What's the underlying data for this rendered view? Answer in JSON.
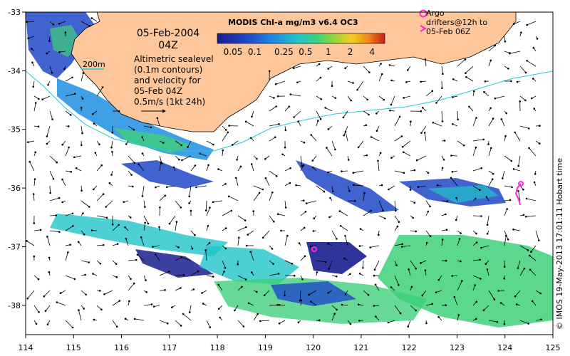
{
  "map": {
    "title_date": "05-Feb-2004",
    "title_time": "04Z",
    "sealevel_text": "Altimetric sealevel (0.1m contours) and velocity for 05-Feb 04Z",
    "scale_text": "0.5m/s (1kt 24h)",
    "contour_label": "200m",
    "credit": "© IMOS 19-May-2013 17:01:11 Hobart time",
    "x_axis_ticks": [
      "114",
      "115",
      "116",
      "117",
      "118",
      "119",
      "120",
      "121",
      "122",
      "123",
      "124",
      "125"
    ],
    "y_axis_ticks": [
      "-33",
      "-34",
      "-35",
      "-36",
      "-37",
      "-38"
    ],
    "lon_range": [
      114,
      125
    ],
    "lat_range": [
      -38.5,
      -33
    ]
  },
  "colorbar": {
    "title": "MODIS Chl-a mg/m3 v6.4 OC3",
    "ticks": [
      "0.05",
      "0.1",
      "0.25",
      "0.5",
      "1",
      "2",
      "4"
    ],
    "colors": [
      "#1a1e8f",
      "#1f48c8",
      "#1f8fe0",
      "#20c4c8",
      "#3ed07a",
      "#9ad43a",
      "#f0d020",
      "#f08a18",
      "#c81e14"
    ]
  },
  "argo": {
    "legend_text": "Argo drifters@12h to 05-Feb 06Z",
    "marker_color": "#ff2ad4"
  },
  "colors": {
    "land": "#fdc79b",
    "ocean": "#ffffff",
    "contour_200m": "#22c8d8"
  }
}
